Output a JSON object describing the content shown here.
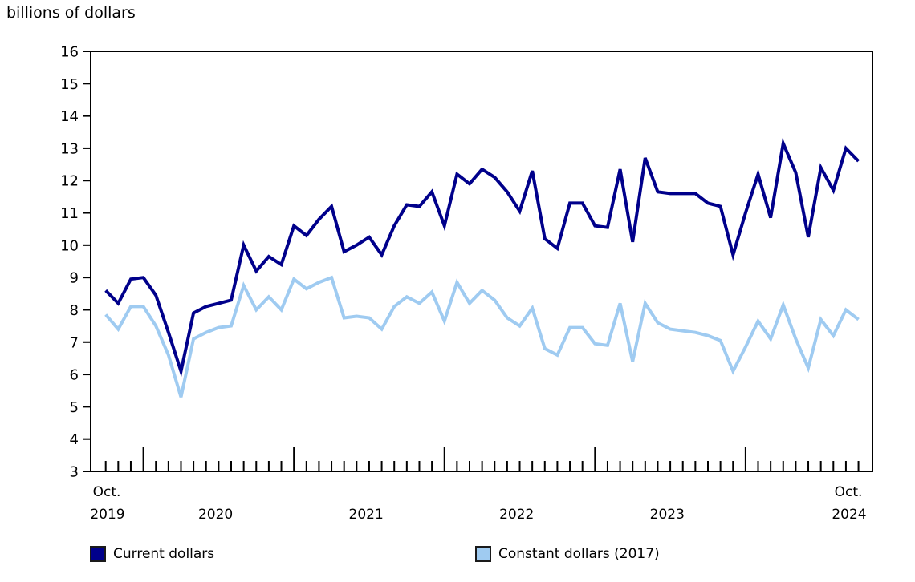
{
  "title": "billions of dollars",
  "colors": {
    "axis": "#000000",
    "background": "#ffffff",
    "current_dollars": "#00008B",
    "constant_dollars": "#9FCBF1"
  },
  "legend": {
    "current": {
      "label": "Current dollars",
      "color": "#00008B"
    },
    "constant": {
      "label": "Constant dollars (2017)",
      "color": "#9FCBF1"
    }
  },
  "x_axis": {
    "start_month": "Oct.",
    "start_year": "2019",
    "end_month": "Oct.",
    "end_year": "2024",
    "year_labels": [
      "2020",
      "2021",
      "2022",
      "2023"
    ]
  },
  "chart_data": {
    "type": "line",
    "title": "billions of dollars",
    "xlabel": "",
    "ylabel": "billions of dollars",
    "ylim": [
      3,
      16
    ],
    "y_tick_step": 1,
    "grid": false,
    "legend_position": "bottom",
    "frequency": "monthly",
    "x_start": "2019-10",
    "x_end": "2024-10",
    "months": [
      "2019-10",
      "2019-11",
      "2019-12",
      "2020-01",
      "2020-02",
      "2020-03",
      "2020-04",
      "2020-05",
      "2020-06",
      "2020-07",
      "2020-08",
      "2020-09",
      "2020-10",
      "2020-11",
      "2020-12",
      "2021-01",
      "2021-02",
      "2021-03",
      "2021-04",
      "2021-05",
      "2021-06",
      "2021-07",
      "2021-08",
      "2021-09",
      "2021-10",
      "2021-11",
      "2021-12",
      "2022-01",
      "2022-02",
      "2022-03",
      "2022-04",
      "2022-05",
      "2022-06",
      "2022-07",
      "2022-08",
      "2022-09",
      "2022-10",
      "2022-11",
      "2022-12",
      "2023-01",
      "2023-02",
      "2023-03",
      "2023-04",
      "2023-05",
      "2023-06",
      "2023-07",
      "2023-08",
      "2023-09",
      "2023-10",
      "2023-11",
      "2023-12",
      "2024-01",
      "2024-02",
      "2024-03",
      "2024-04",
      "2024-05",
      "2024-06",
      "2024-07",
      "2024-08",
      "2024-09",
      "2024-10"
    ],
    "series": [
      {
        "name": "Current dollars",
        "data_name": "current-dollars-line",
        "color": "#00008B",
        "values": [
          8.6,
          8.2,
          8.95,
          9.0,
          8.45,
          7.3,
          6.1,
          7.9,
          8.1,
          8.2,
          8.3,
          10.0,
          9.2,
          9.65,
          9.4,
          10.6,
          10.3,
          10.8,
          11.2,
          9.8,
          10.0,
          10.25,
          9.7,
          10.6,
          11.25,
          11.2,
          11.65,
          10.6,
          12.2,
          11.9,
          12.35,
          12.1,
          11.65,
          11.05,
          12.3,
          10.2,
          9.9,
          11.3,
          11.3,
          10.6,
          10.55,
          12.35,
          10.1,
          12.7,
          11.65,
          11.6,
          11.6,
          11.6,
          11.3,
          11.2,
          9.7,
          11.0,
          12.2,
          10.85,
          13.15,
          12.25,
          10.25,
          12.4,
          11.7,
          13.0,
          12.6
        ]
      },
      {
        "name": "Constant dollars (2017)",
        "data_name": "constant-dollars-line",
        "color": "#9FCBF1",
        "values": [
          7.85,
          7.4,
          8.1,
          8.1,
          7.5,
          6.6,
          5.3,
          7.1,
          7.3,
          7.45,
          7.5,
          8.75,
          8.0,
          8.4,
          8.0,
          8.95,
          8.65,
          8.85,
          9.0,
          7.75,
          7.8,
          7.75,
          7.4,
          8.1,
          8.4,
          8.2,
          8.55,
          7.65,
          8.85,
          8.2,
          8.6,
          8.3,
          7.75,
          7.5,
          8.05,
          6.8,
          6.6,
          7.45,
          7.45,
          6.95,
          6.9,
          8.2,
          6.4,
          8.2,
          7.6,
          7.4,
          7.35,
          7.3,
          7.2,
          7.05,
          6.1,
          6.85,
          7.65,
          7.1,
          8.15,
          7.1,
          6.2,
          7.7,
          7.2,
          8.0,
          7.7
        ]
      }
    ]
  }
}
